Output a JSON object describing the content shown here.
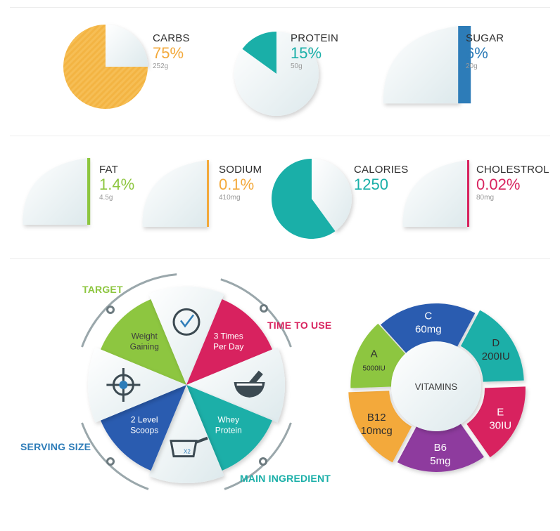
{
  "colors": {
    "orange": "#F3A93B",
    "teal": "#1AAFA8",
    "blue": "#2D7CB8",
    "green": "#8DC63F",
    "pink": "#D8245F",
    "purple": "#8E3B9E",
    "navy": "#2A5BB0",
    "gray": "#888888",
    "paper": "#EEF6F7"
  },
  "nutrition": [
    {
      "name": "CARBS",
      "value": "75%",
      "amount": "252g",
      "fraction": 0.75,
      "color": "#F3A93B",
      "pct_color": "#F3A93B"
    },
    {
      "name": "PROTEIN",
      "value": "15%",
      "amount": "50g",
      "fraction": 0.15,
      "color": "#1AAFA8",
      "pct_color": "#1AAFA8"
    },
    {
      "name": "SUGAR",
      "value": "6%",
      "amount": "20g",
      "fraction": 0.06,
      "color": "#2D7CB8",
      "pct_color": "#2D7CB8"
    },
    {
      "name": "FAT",
      "value": "1.4%",
      "amount": "4.5g",
      "fraction": 0.014,
      "color": "#8DC63F",
      "pct_color": "#8DC63F"
    },
    {
      "name": "SODIUM",
      "value": "0.1%",
      "amount": "410mg",
      "fraction": 0.001,
      "color": "#F3A93B",
      "pct_color": "#F3A93B"
    },
    {
      "name": "CALORIES",
      "value": "1250",
      "amount": "",
      "fraction": 0.6,
      "color": "#1AAFA8",
      "pct_color": "#1AAFA8"
    },
    {
      "name": "CHOLESTROL",
      "value": "0.02%",
      "amount": "80mg",
      "fraction": 0.0002,
      "color": "#D8245F",
      "pct_color": "#D8245F"
    }
  ],
  "usage": {
    "titles": {
      "target": "TARGET",
      "time_to_use": "TIME TO USE",
      "main_ingredient": "MAIN INGREDIENT",
      "serving_size": "SERVING SIZE"
    },
    "segments": [
      {
        "key": "weight",
        "lines": [
          "Weight",
          "Gaining"
        ],
        "color": "#8DC63F",
        "icon": ""
      },
      {
        "key": "clock",
        "lines": [],
        "color": "#EEF6F7",
        "icon": "clock-icon"
      },
      {
        "key": "time",
        "lines": [
          "3 Times",
          "Per Day"
        ],
        "color": "#D8245F",
        "icon": ""
      },
      {
        "key": "bowl",
        "lines": [],
        "color": "#EEF6F7",
        "icon": "mortar-bowl-icon"
      },
      {
        "key": "whey",
        "lines": [
          "Whey",
          "Protein"
        ],
        "color": "#1AAFA8",
        "icon": ""
      },
      {
        "key": "scoop",
        "lines": [],
        "color": "#EEF6F7",
        "icon": "scoop-icon"
      },
      {
        "key": "scoops",
        "lines": [
          "2 Level",
          "Scoops"
        ],
        "color": "#2A5BB0",
        "icon": ""
      },
      {
        "key": "target",
        "lines": [],
        "color": "#EEF6F7",
        "icon": "crosshair-icon"
      }
    ],
    "scoop_mark": "X2"
  },
  "vitamins": {
    "center": "VITAMINS",
    "segments": [
      {
        "name": "C",
        "value": "60mg",
        "color": "#2A5BB0"
      },
      {
        "name": "D",
        "value": "200IU",
        "color": "#1AAFA8"
      },
      {
        "name": "E",
        "value": "30IU",
        "color": "#D8245F"
      },
      {
        "name": "B6",
        "value": "5mg",
        "color": "#8E3B9E"
      },
      {
        "name": "B12",
        "value": "10mcg",
        "color": "#F3A93B"
      },
      {
        "name": "A",
        "value": "5000IU",
        "color": "#8DC63F"
      }
    ]
  }
}
